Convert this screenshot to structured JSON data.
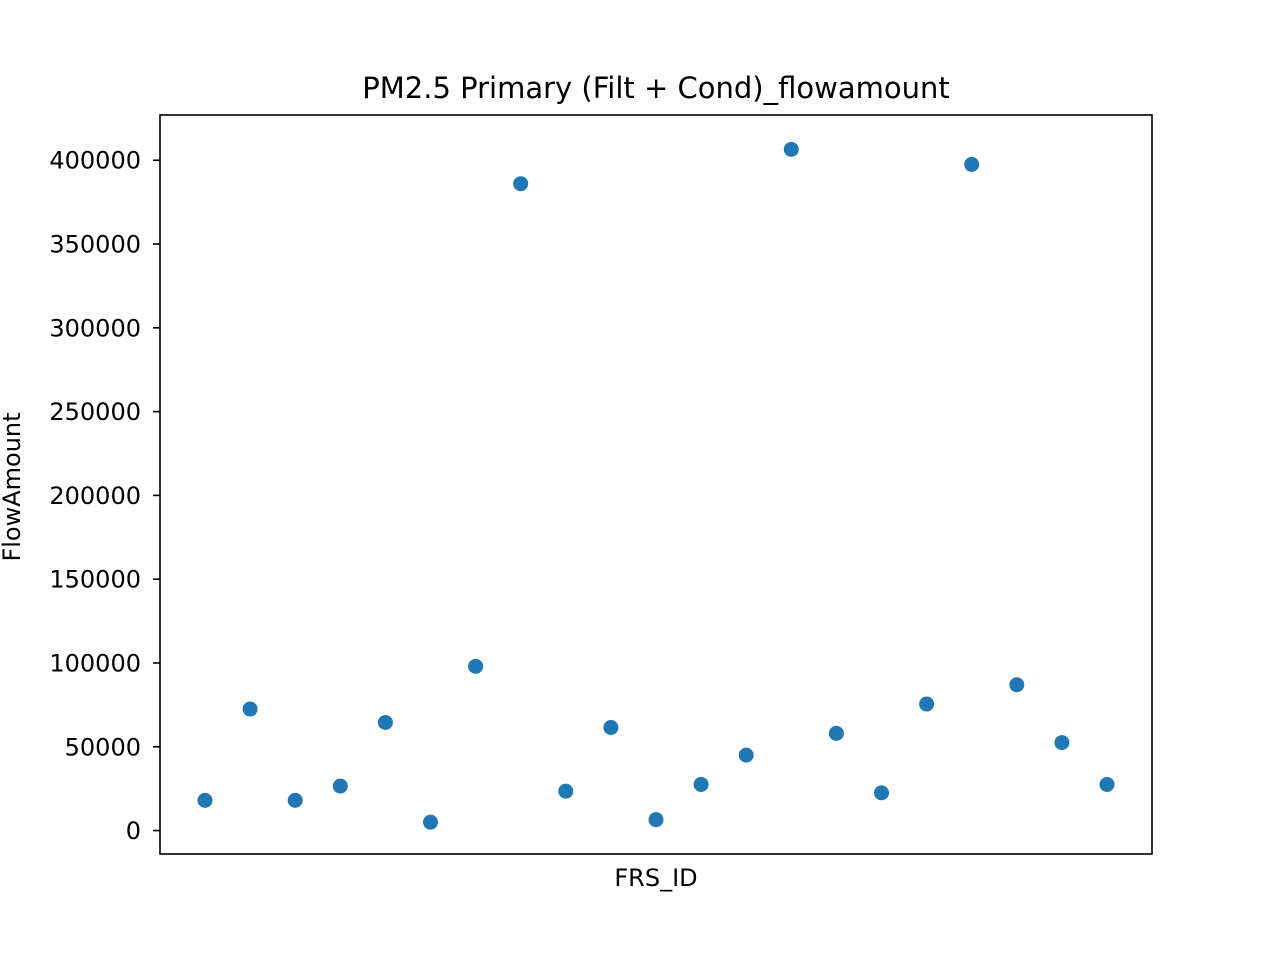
{
  "chart_data": {
    "type": "scatter",
    "title": "PM2.5 Primary (Filt + Cond)_flowamount",
    "xlabel": "FRS_ID",
    "ylabel": "FlowAmount",
    "ylim": [
      -14000,
      427000
    ],
    "yticks": [
      0,
      50000,
      100000,
      150000,
      200000,
      250000,
      300000,
      350000,
      400000
    ],
    "ytick_labels": [
      "0",
      "50000",
      "100000",
      "150000",
      "200000",
      "250000",
      "300000",
      "350000",
      "400000"
    ],
    "x_tick_labels_shown": false,
    "grid": false,
    "legend": "none",
    "marker_color": "#1f77b4",
    "series": [
      {
        "values": [
          18000,
          72500,
          18000,
          26500,
          64500,
          5000,
          98000,
          386000,
          23500,
          61500,
          6500,
          27500,
          45000,
          406500,
          58000,
          22500,
          75500,
          397500,
          87000,
          52500,
          27500
        ]
      }
    ]
  }
}
